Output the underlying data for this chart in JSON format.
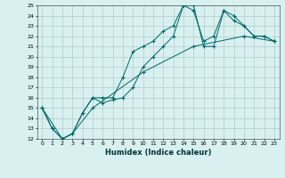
{
  "title": "",
  "xlabel": "Humidex (Indice chaleur)",
  "ylabel": "",
  "bg_color": "#d8f0f0",
  "grid_color": "#b0cccc",
  "line_color": "#006666",
  "xlim": [
    -0.5,
    23.5
  ],
  "ylim": [
    12,
    25
  ],
  "xticks": [
    0,
    1,
    2,
    3,
    4,
    5,
    6,
    7,
    8,
    9,
    10,
    11,
    12,
    13,
    14,
    15,
    16,
    17,
    18,
    19,
    20,
    21,
    22,
    23
  ],
  "yticks": [
    12,
    13,
    14,
    15,
    16,
    17,
    18,
    19,
    20,
    21,
    22,
    23,
    24,
    25
  ],
  "lines": [
    {
      "x": [
        0,
        1,
        2,
        3,
        4,
        5,
        6,
        7,
        8,
        9,
        10,
        11,
        12,
        13,
        14,
        15,
        16,
        17,
        18,
        19,
        20,
        21,
        22,
        23
      ],
      "y": [
        15,
        13,
        12,
        12.5,
        14.5,
        16,
        16,
        16,
        18,
        20.5,
        21,
        21.5,
        22.5,
        23,
        25,
        25,
        21,
        21,
        24.5,
        24,
        23,
        22,
        22,
        21.5
      ]
    },
    {
      "x": [
        0,
        1,
        2,
        3,
        4,
        5,
        6,
        7,
        8,
        9,
        10,
        11,
        12,
        13,
        14,
        15,
        16,
        17,
        18,
        19,
        20,
        21,
        22,
        23
      ],
      "y": [
        15,
        13,
        12,
        12.5,
        14.5,
        16,
        15.5,
        15.8,
        16,
        17,
        19,
        20,
        21,
        22,
        25,
        24.5,
        21.5,
        22,
        24.5,
        23.5,
        23,
        22,
        22,
        21.5
      ]
    },
    {
      "x": [
        0,
        2,
        3,
        5,
        10,
        15,
        20,
        23
      ],
      "y": [
        15,
        12,
        12.5,
        15,
        18.5,
        21,
        22,
        21.5
      ]
    }
  ]
}
